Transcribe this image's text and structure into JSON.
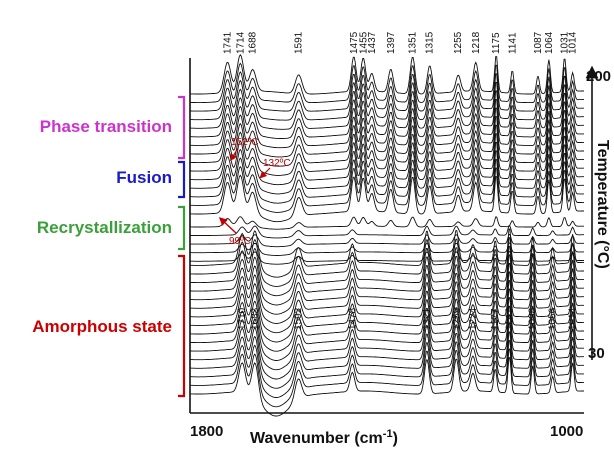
{
  "chart_data": {
    "type": "line",
    "subtype": "waterfall FTIR spectra stack",
    "xlabel": "Wavenumber (cm",
    "xlabel_sup": "-1",
    "xlabel_close": ")",
    "x_ticks": [
      "1800",
      "1000"
    ],
    "xlim": [
      1820,
      990
    ],
    "ylabel": "Temperature (°C)",
    "temperature_ticks": [
      "200",
      "30"
    ],
    "temperature_range": [
      30,
      200
    ],
    "n_spectra": 36,
    "regions": [
      {
        "name": "Phase transition",
        "color": "#cc33cc"
      },
      {
        "name": "Fusion",
        "color": "#1a1acc"
      },
      {
        "name": "Recrystallization",
        "color": "#3aa03a"
      },
      {
        "name": "Amorphous state",
        "color": "#cc0000"
      }
    ],
    "top_peaks": [
      "1741",
      "1714",
      "1688",
      "1591",
      "1475",
      "1455",
      "1437",
      "1397",
      "1351",
      "1315",
      "1255",
      "1218",
      "1175",
      "1141",
      "1087",
      "1064",
      "1031",
      "1014"
    ],
    "bottom_peaks": [
      "1710",
      "1683",
      "1592",
      "1478",
      "1321",
      "1259",
      "1224",
      "1177",
      "1147",
      "1098",
      "1056",
      "1014"
    ],
    "annotations": [
      "152ºC",
      "132ºC",
      "99ºC"
    ]
  }
}
